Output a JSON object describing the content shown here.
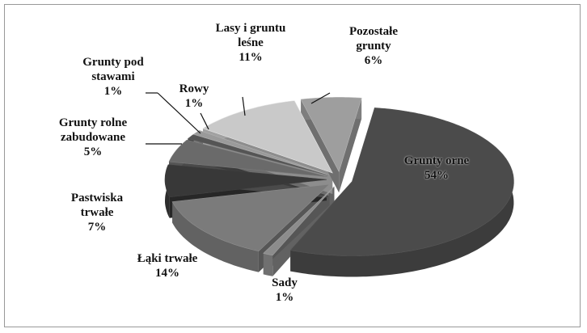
{
  "chart_data": {
    "type": "pie3d",
    "categories": [
      "Grunty orne",
      "Sady",
      "Łąki trwałe",
      "Pastwiska trwałe",
      "Grunty rolne zabudowane",
      "Grunty pod stawami",
      "Rowy",
      "Lasy i gruntu leśne",
      "Pozostałe grunty"
    ],
    "values": [
      54,
      1,
      14,
      7,
      5,
      1,
      1,
      11,
      6
    ],
    "value_labels": [
      "54%",
      "1%",
      "14%",
      "7%",
      "5%",
      "1%",
      "1%",
      "11%",
      "6%"
    ],
    "colors": [
      "#4b4b4b",
      "#8c8c8c",
      "#7b7b7b",
      "#383838",
      "#6a6a6a",
      "#555555",
      "#9a9a9a",
      "#c9c9c9",
      "#9e9e9e"
    ]
  }
}
